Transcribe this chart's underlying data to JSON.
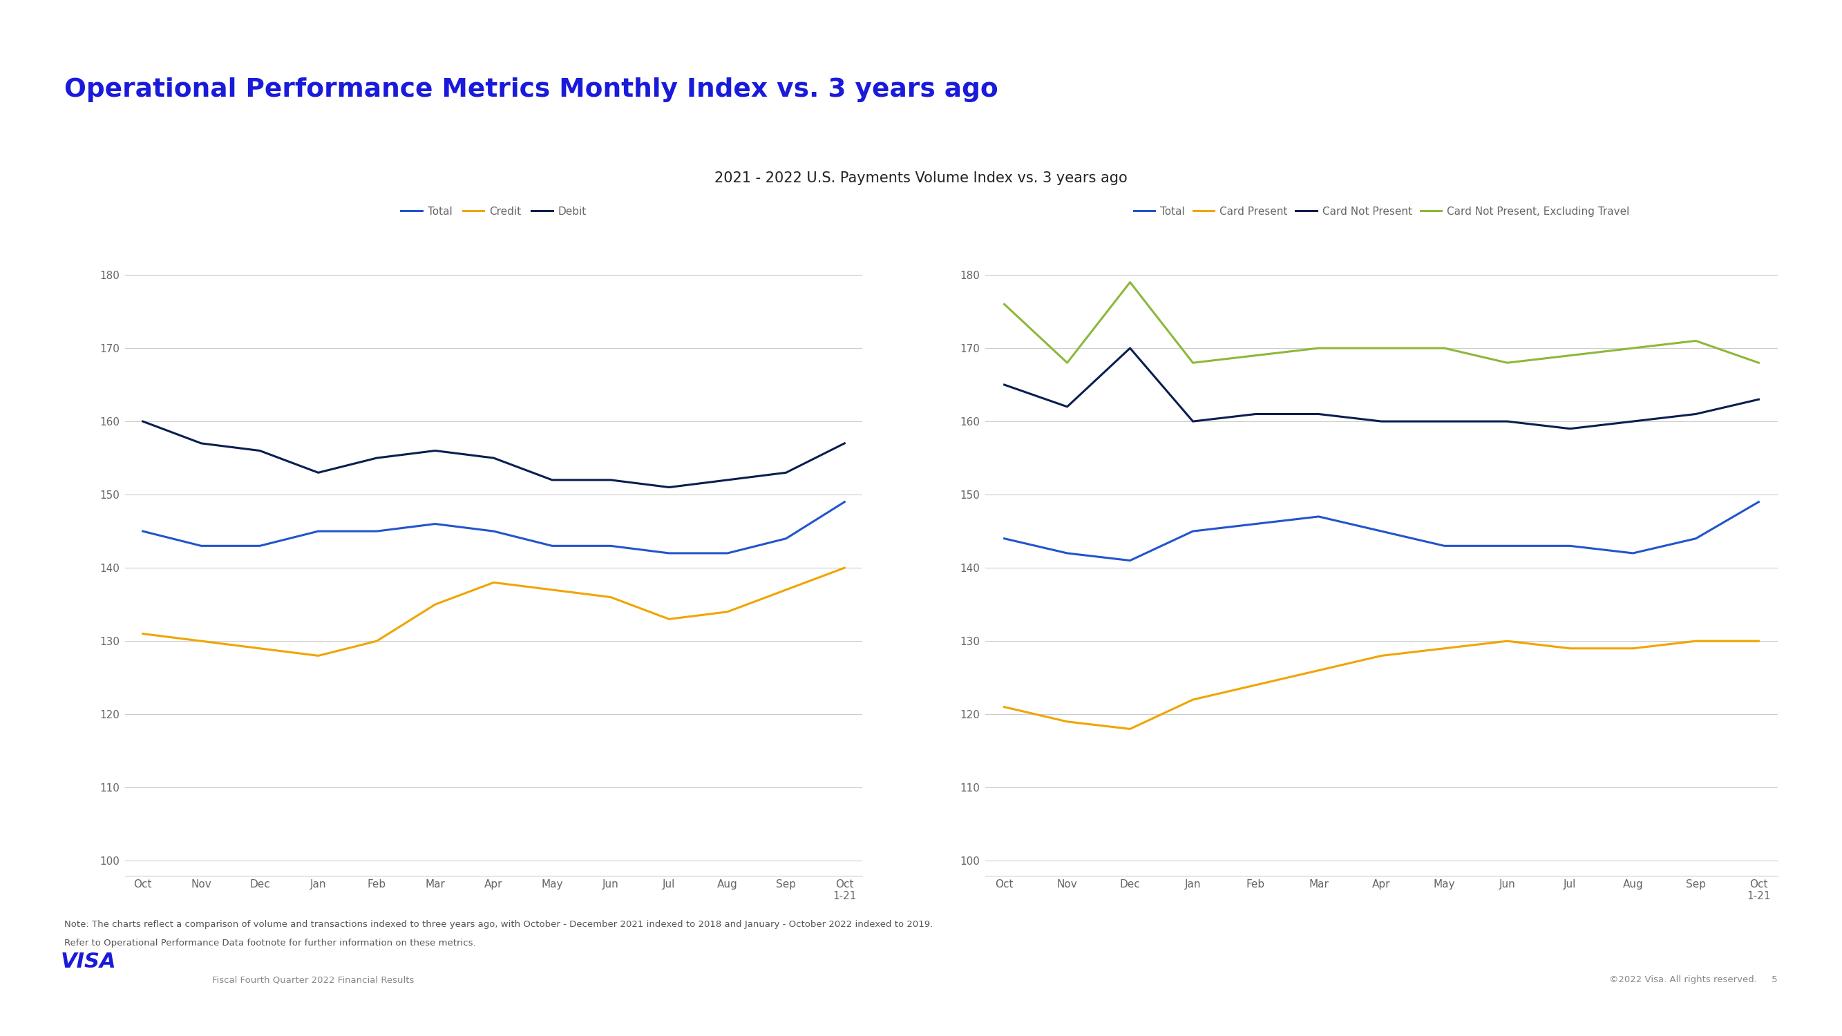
{
  "title": "Operational Performance Metrics Monthly Index vs. 3 years ago",
  "subtitle": "2021 - 2022 U.S. Payments Volume Index vs. 3 years ago",
  "background_color": "#ffffff",
  "title_color": "#1a1adb",
  "subtitle_color": "#222222",
  "x_labels": [
    "Oct",
    "Nov",
    "Dec",
    "Jan",
    "Feb",
    "Mar",
    "Apr",
    "May",
    "Jun",
    "Jul",
    "Aug",
    "Sep",
    "Oct\n1-21"
  ],
  "ylim": [
    98,
    185
  ],
  "yticks": [
    100,
    110,
    120,
    130,
    140,
    150,
    160,
    170,
    180
  ],
  "left_chart": {
    "total": [
      145,
      143,
      143,
      145,
      145,
      146,
      145,
      143,
      143,
      142,
      142,
      144,
      149
    ],
    "credit": [
      131,
      130,
      129,
      128,
      130,
      135,
      138,
      137,
      136,
      133,
      134,
      137,
      140
    ],
    "debit": [
      160,
      157,
      156,
      153,
      155,
      156,
      155,
      152,
      152,
      151,
      152,
      153,
      157
    ],
    "legend": [
      "Total",
      "Credit",
      "Debit"
    ],
    "colors": [
      "#2255cc",
      "#f0a500",
      "#0a1e50"
    ]
  },
  "right_chart": {
    "total": [
      144,
      142,
      141,
      145,
      146,
      147,
      145,
      143,
      143,
      143,
      142,
      144,
      149
    ],
    "card_present": [
      121,
      119,
      118,
      122,
      124,
      126,
      128,
      129,
      130,
      129,
      129,
      130,
      130
    ],
    "card_not_present": [
      165,
      162,
      170,
      160,
      161,
      161,
      160,
      160,
      160,
      159,
      160,
      161,
      163
    ],
    "card_not_present_excl": [
      176,
      168,
      179,
      168,
      169,
      170,
      170,
      170,
      168,
      169,
      170,
      171,
      168
    ],
    "legend": [
      "Total",
      "Card Present",
      "Card Not Present",
      "Card Not Present, Excluding Travel"
    ],
    "colors": [
      "#2255cc",
      "#f0a500",
      "#0a1e50",
      "#8db83a"
    ]
  },
  "footer_note_line1": "Note: The charts reflect a comparison of volume and transactions indexed to three years ago, with October - December 2021 indexed to 2018 and January - October 2022 indexed to 2019.",
  "footer_note_line2": "Refer to Operational Performance Data footnote for further information on these metrics.",
  "footer_right": "©2022 Visa. All rights reserved.     5",
  "footer_sub": "Fiscal Fourth Quarter 2022 Financial Results",
  "top_bar_color": "#1f3adb",
  "grid_color": "#cccccc",
  "tick_color": "#666666",
  "sep_line_color": "#222222"
}
